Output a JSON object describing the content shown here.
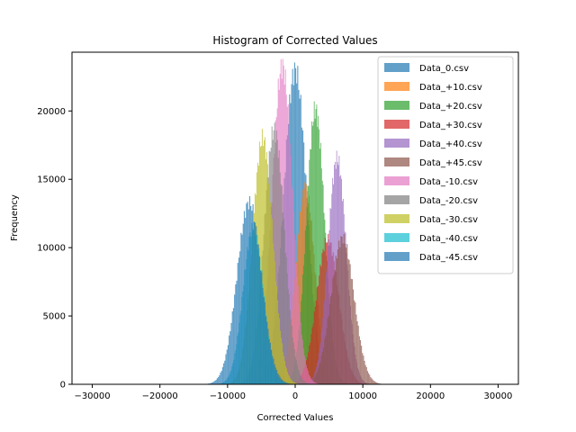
{
  "chart_data": {
    "type": "histogram",
    "title": "Histogram of Corrected Values",
    "xlabel": "Corrected Values",
    "ylabel": "Frequency",
    "xlim": [
      -33000,
      33000
    ],
    "ylim": [
      0,
      24300
    ],
    "xticks": [
      -30000,
      -20000,
      -10000,
      0,
      10000,
      20000,
      30000
    ],
    "xtick_labels": [
      "−30000",
      "−20000",
      "−10000",
      "0",
      "10000",
      "20000",
      "30000"
    ],
    "yticks": [
      0,
      5000,
      10000,
      15000,
      20000
    ],
    "ytick_labels": [
      "0",
      "5000",
      "10000",
      "15000",
      "20000"
    ],
    "grid": false,
    "legend_position": "upper-right",
    "alpha": 0.7,
    "series": [
      {
        "name": "Data_0.csv",
        "color": "#1f77b4",
        "mean": 0,
        "std": 1700,
        "peak": 23000
      },
      {
        "name": "Data_+10.csv",
        "color": "#ff7f0e",
        "mean": 1500,
        "std": 1400,
        "peak": 14400
      },
      {
        "name": "Data_+20.csv",
        "color": "#2ca02c",
        "mean": 3000,
        "std": 1350,
        "peak": 20100
      },
      {
        "name": "Data_+30.csv",
        "color": "#d62728",
        "mean": 4800,
        "std": 1650,
        "peak": 10600
      },
      {
        "name": "Data_+40.csv",
        "color": "#9467bd",
        "mean": 6200,
        "std": 1350,
        "peak": 16500
      },
      {
        "name": "Data_+45.csv",
        "color": "#8c564b",
        "mean": 7000,
        "std": 1700,
        "peak": 10700
      },
      {
        "name": "Data_-10.csv",
        "color": "#e377c2",
        "mean": -1900,
        "std": 1500,
        "peak": 23300
      },
      {
        "name": "Data_-20.csv",
        "color": "#7f7f7f",
        "mean": -3100,
        "std": 1500,
        "peak": 18600
      },
      {
        "name": "Data_-30.csv",
        "color": "#bcbd22",
        "mean": -4800,
        "std": 1500,
        "peak": 18000
      },
      {
        "name": "Data_-40.csv",
        "color": "#17becf",
        "mean": -6200,
        "std": 1500,
        "peak": 11500
      },
      {
        "name": "Data_-45.csv",
        "color": "#1f77b4",
        "mean": -6800,
        "std": 1800,
        "peak": 13300
      }
    ]
  }
}
